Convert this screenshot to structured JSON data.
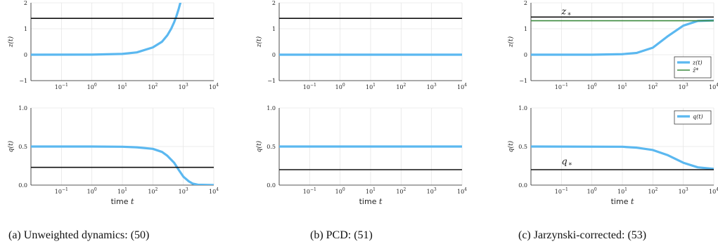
{
  "chart_data": [
    {
      "panel": "a",
      "row": "top",
      "type": "line",
      "xscale": "log",
      "xlim": [
        0.01,
        10000
      ],
      "ylim": [
        -1,
        2
      ],
      "xticks": [
        "10^-1",
        "10^0",
        "10^1",
        "10^2",
        "10^3",
        "10^4"
      ],
      "yticks": [
        "-1",
        "0",
        "1",
        "2"
      ],
      "ylabel": "z(t)",
      "xlabel": "",
      "grid": true,
      "series": [
        {
          "color": "#5bb8f0",
          "x": [
            0.01,
            1,
            10,
            30,
            100,
            200,
            300,
            400,
            500,
            600,
            700,
            800
          ],
          "y": [
            0,
            0.003,
            0.03,
            0.09,
            0.28,
            0.5,
            0.75,
            1.0,
            1.25,
            1.5,
            1.75,
            2.0
          ]
        },
        {
          "color": "#111111",
          "const": 1.4
        }
      ]
    },
    {
      "panel": "b",
      "row": "top",
      "type": "line",
      "xscale": "log",
      "xlim": [
        0.01,
        10000
      ],
      "ylim": [
        -1,
        2
      ],
      "xticks": [
        "10^-1",
        "10^0",
        "10^1",
        "10^2",
        "10^3",
        "10^4"
      ],
      "yticks": [
        "-1",
        "0",
        "1",
        "2"
      ],
      "ylabel": "z(t)",
      "xlabel": "",
      "grid": true,
      "series": [
        {
          "color": "#5bb8f0",
          "x": [
            0.01,
            10000
          ],
          "y": [
            0,
            0
          ]
        },
        {
          "color": "#111111",
          "const": 1.4
        }
      ]
    },
    {
      "panel": "c",
      "row": "top",
      "type": "line",
      "xscale": "log",
      "xlim": [
        0.01,
        10000
      ],
      "ylim": [
        -1,
        2
      ],
      "xticks": [
        "10^-1",
        "10^0",
        "10^1",
        "10^2",
        "10^3",
        "10^4"
      ],
      "yticks": [
        "-1",
        "0",
        "1",
        "2"
      ],
      "ylabel": "z(t)",
      "xlabel": "",
      "grid": true,
      "legend": "bottom-right",
      "annotations": [
        {
          "label": "z",
          "sub": "*",
          "x": 0.1,
          "y": 1.55
        }
      ],
      "series": [
        {
          "color": "#5bb8f0",
          "name": "z(t)",
          "x": [
            0.01,
            1,
            10,
            30,
            100,
            300,
            1000,
            3000,
            10000
          ],
          "y": [
            0,
            0,
            0.02,
            0.07,
            0.27,
            0.7,
            1.12,
            1.3,
            1.32
          ]
        },
        {
          "color": "#111111",
          "const": 1.45
        },
        {
          "color": "#3b8a3e",
          "name": "ẑ*",
          "const": 1.31
        }
      ]
    },
    {
      "panel": "a",
      "row": "bottom",
      "type": "line",
      "xscale": "log",
      "xlim": [
        0.01,
        10000
      ],
      "ylim": [
        0,
        1
      ],
      "xticks": [
        "10^-1",
        "10^0",
        "10^1",
        "10^2",
        "10^3",
        "10^4"
      ],
      "yticks": [
        "0.0",
        "0.5",
        "1.0"
      ],
      "ylabel": "q(t)",
      "xlabel": "time t",
      "grid": true,
      "series": [
        {
          "color": "#5bb8f0",
          "x": [
            0.01,
            1,
            10,
            30,
            100,
            200,
            300,
            500,
            700,
            1000,
            1500,
            2000,
            3000,
            10000
          ],
          "y": [
            0.5,
            0.5,
            0.497,
            0.49,
            0.47,
            0.43,
            0.38,
            0.29,
            0.2,
            0.11,
            0.05,
            0.02,
            0.005,
            0
          ]
        },
        {
          "color": "#111111",
          "const": 0.23
        }
      ]
    },
    {
      "panel": "b",
      "row": "bottom",
      "type": "line",
      "xscale": "log",
      "xlim": [
        0.01,
        10000
      ],
      "ylim": [
        0,
        1
      ],
      "xticks": [
        "10^-1",
        "10^0",
        "10^1",
        "10^2",
        "10^3",
        "10^4"
      ],
      "yticks": [
        "0.0",
        "0.5",
        "1.0"
      ],
      "ylabel": "q(t)",
      "xlabel": "time t",
      "grid": true,
      "series": [
        {
          "color": "#5bb8f0",
          "x": [
            0.01,
            10000
          ],
          "y": [
            0.5,
            0.5
          ]
        },
        {
          "color": "#111111",
          "const": 0.2
        }
      ]
    },
    {
      "panel": "c",
      "row": "bottom",
      "type": "line",
      "xscale": "log",
      "xlim": [
        0.01,
        10000
      ],
      "ylim": [
        0,
        1
      ],
      "xticks": [
        "10^-1",
        "10^0",
        "10^1",
        "10^2",
        "10^3",
        "10^4"
      ],
      "yticks": [
        "0.0",
        "0.5",
        "1.0"
      ],
      "ylabel": "q(t)",
      "xlabel": "time t",
      "grid": true,
      "legend": "top-right",
      "annotations": [
        {
          "label": "q",
          "sub": "*",
          "x": 0.1,
          "y": 0.27
        }
      ],
      "series": [
        {
          "color": "#5bb8f0",
          "name": "q(t)",
          "x": [
            0.01,
            10,
            30,
            100,
            300,
            1000,
            3000,
            10000
          ],
          "y": [
            0.5,
            0.497,
            0.485,
            0.455,
            0.39,
            0.29,
            0.23,
            0.21
          ]
        },
        {
          "color": "#111111",
          "const": 0.2
        }
      ]
    }
  ],
  "captions": [
    "(a) Unweighted dynamics: (50)",
    "(b) PCD: (51)",
    "(c) Jarzynski-corrected: (53)"
  ]
}
